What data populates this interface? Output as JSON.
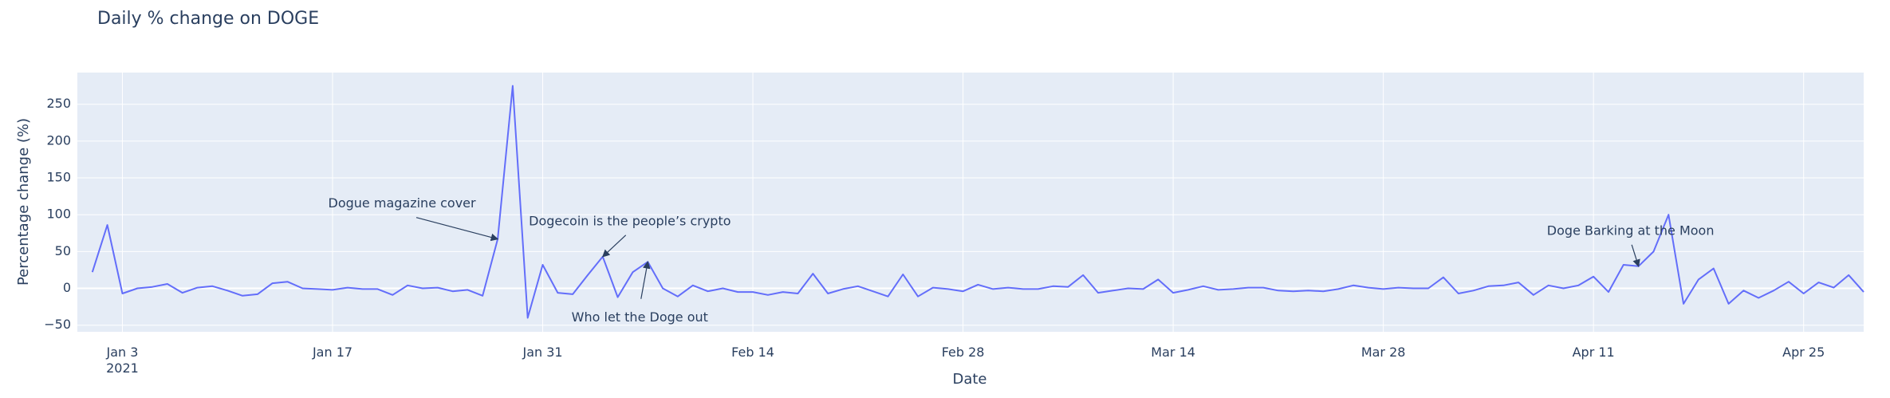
{
  "chart_data": {
    "type": "line",
    "title": "Daily % change on DOGE",
    "x_label": "Date",
    "y_label": "Percentage change (%)",
    "x": [
      "2021-01-01",
      "2021-01-02",
      "2021-01-03",
      "2021-01-04",
      "2021-01-05",
      "2021-01-06",
      "2021-01-07",
      "2021-01-08",
      "2021-01-09",
      "2021-01-10",
      "2021-01-11",
      "2021-01-12",
      "2021-01-13",
      "2021-01-14",
      "2021-01-15",
      "2021-01-16",
      "2021-01-17",
      "2021-01-18",
      "2021-01-19",
      "2021-01-20",
      "2021-01-21",
      "2021-01-22",
      "2021-01-23",
      "2021-01-24",
      "2021-01-25",
      "2021-01-26",
      "2021-01-27",
      "2021-01-28",
      "2021-01-29",
      "2021-01-30",
      "2021-01-31",
      "2021-02-01",
      "2021-02-02",
      "2021-02-03",
      "2021-02-04",
      "2021-02-05",
      "2021-02-06",
      "2021-02-07",
      "2021-02-08",
      "2021-02-09",
      "2021-02-10",
      "2021-02-11",
      "2021-02-12",
      "2021-02-13",
      "2021-02-14",
      "2021-02-15",
      "2021-02-16",
      "2021-02-17",
      "2021-02-18",
      "2021-02-19",
      "2021-02-20",
      "2021-02-21",
      "2021-02-22",
      "2021-02-23",
      "2021-02-24",
      "2021-02-25",
      "2021-02-26",
      "2021-02-27",
      "2021-02-28",
      "2021-03-01",
      "2021-03-02",
      "2021-03-03",
      "2021-03-04",
      "2021-03-05",
      "2021-03-06",
      "2021-03-07",
      "2021-03-08",
      "2021-03-09",
      "2021-03-10",
      "2021-03-11",
      "2021-03-12",
      "2021-03-13",
      "2021-03-14",
      "2021-03-15",
      "2021-03-16",
      "2021-03-17",
      "2021-03-18",
      "2021-03-19",
      "2021-03-20",
      "2021-03-21",
      "2021-03-22",
      "2021-03-23",
      "2021-03-24",
      "2021-03-25",
      "2021-03-26",
      "2021-03-27",
      "2021-03-28",
      "2021-03-29",
      "2021-03-30",
      "2021-03-31",
      "2021-04-01",
      "2021-04-02",
      "2021-04-03",
      "2021-04-04",
      "2021-04-05",
      "2021-04-06",
      "2021-04-07",
      "2021-04-08",
      "2021-04-09",
      "2021-04-10",
      "2021-04-11",
      "2021-04-12",
      "2021-04-13",
      "2021-04-14",
      "2021-04-15",
      "2021-04-16",
      "2021-04-17",
      "2021-04-18",
      "2021-04-19",
      "2021-04-20",
      "2021-04-21",
      "2021-04-22",
      "2021-04-23",
      "2021-04-24",
      "2021-04-25",
      "2021-04-26",
      "2021-04-27",
      "2021-04-28",
      "2021-04-29"
    ],
    "series": [
      {
        "color": "#636efa",
        "values": [
          22,
          86,
          -7,
          0,
          2,
          6,
          -6,
          1,
          3,
          -3,
          -10,
          -8,
          7,
          9,
          0,
          -1,
          -2,
          1,
          -1,
          -1,
          -9,
          4,
          0,
          1,
          -4,
          -2,
          -10,
          67,
          275,
          -40,
          32,
          -6,
          -8,
          18,
          43,
          -12,
          22,
          36,
          0,
          -11,
          4,
          -4,
          0,
          -5,
          -5,
          -9,
          -5,
          -7,
          20,
          -7,
          -1,
          3,
          -4,
          -11,
          19,
          -11,
          1,
          -1,
          -4,
          5,
          -1,
          1,
          -1,
          -1,
          3,
          2,
          18,
          -6,
          -3,
          0,
          -1,
          12,
          -6,
          -2,
          3,
          -2,
          -1,
          1,
          1,
          -3,
          -4,
          -3,
          -4,
          -1,
          4,
          1,
          -1,
          1,
          0,
          0,
          15,
          -7,
          -3,
          3,
          4,
          8,
          -9,
          4,
          0,
          4,
          16,
          -5,
          32,
          30,
          50,
          100,
          -21,
          12,
          27,
          -21,
          -3,
          -13,
          -3,
          9,
          -7,
          8,
          1,
          18,
          -5
        ]
      }
    ],
    "xlim": [
      "2020-12-31",
      "2021-04-29"
    ],
    "xticks": [
      {
        "value": "2021-01-03",
        "label": "Jan 3\n2021"
      },
      {
        "value": "2021-01-17",
        "label": "Jan 17"
      },
      {
        "value": "2021-01-31",
        "label": "Jan 31"
      },
      {
        "value": "2021-02-14",
        "label": "Feb 14"
      },
      {
        "value": "2021-02-28",
        "label": "Feb 28"
      },
      {
        "value": "2021-03-14",
        "label": "Mar 14"
      },
      {
        "value": "2021-03-28",
        "label": "Mar 28"
      },
      {
        "value": "2021-04-11",
        "label": "Apr 11"
      },
      {
        "value": "2021-04-25",
        "label": "Apr 25"
      }
    ],
    "ylim": [
      -59,
      293
    ],
    "yticks": [
      {
        "value": -50,
        "label": "−50"
      },
      0,
      50,
      100,
      150,
      200,
      250
    ],
    "grid": true,
    "annotations": [
      {
        "text": "Dogue magazine cover",
        "x": "2021-01-28",
        "y": 67
      },
      {
        "text": "Dogecoin is the people’s crypto",
        "x": "2021-02-04",
        "y": 43
      },
      {
        "text": "Who let the Doge out",
        "x": "2021-02-07",
        "y": 36
      },
      {
        "text": "Doge Barking at the Moon",
        "x": "2021-04-14",
        "y": 30
      }
    ]
  }
}
